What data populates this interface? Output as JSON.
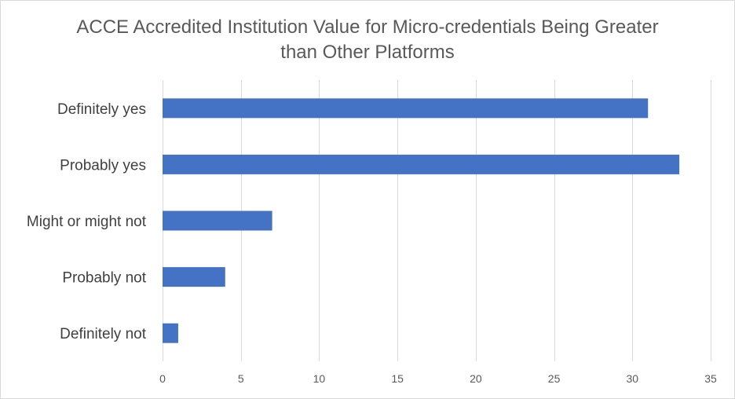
{
  "chart_data": {
    "type": "bar",
    "orientation": "horizontal",
    "title_lines": [
      "ACCE Accredited Institution Value for Micro-credentials Being Greater",
      "than Other Platforms"
    ],
    "categories": [
      "Definitely yes",
      "Probably yes",
      "Might or might not",
      "Probably not",
      "Definitely not"
    ],
    "values": [
      31,
      33,
      7,
      4,
      1
    ],
    "xlim": [
      0,
      35
    ],
    "x_ticks": [
      0,
      5,
      10,
      15,
      20,
      25,
      30,
      35
    ],
    "grid": "vertical",
    "legend": "none",
    "bar_color": "#4472c4",
    "grid_color": "#d9d9d9"
  }
}
